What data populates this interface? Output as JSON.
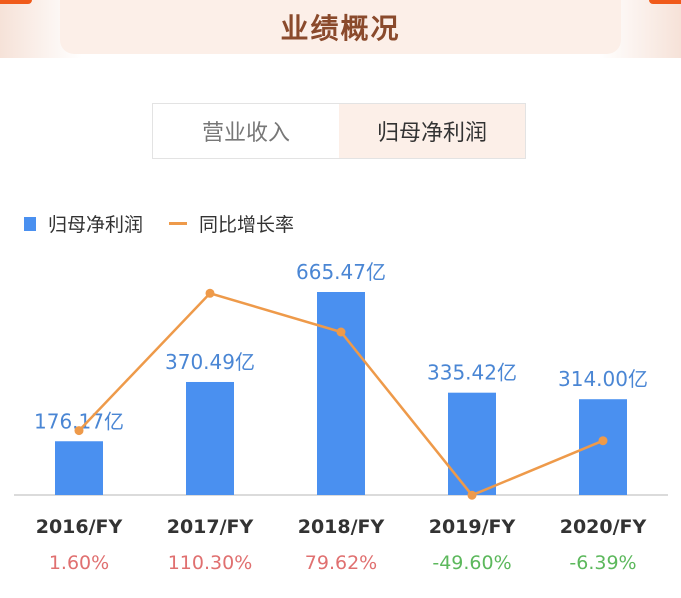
{
  "header": {
    "title": "业绩概况"
  },
  "tabs": [
    {
      "label": "营业收入",
      "active": false
    },
    {
      "label": "归母净利润",
      "active": true
    }
  ],
  "colors": {
    "bar": "#4a90f0",
    "line": "#ee9a4a",
    "positive": "#e07070",
    "negative": "#5cb85c",
    "value_label": "#4a86d4"
  },
  "chart_data": {
    "type": "bar",
    "categories": [
      "2016/FY",
      "2017/FY",
      "2018/FY",
      "2019/FY",
      "2020/FY"
    ],
    "series": [
      {
        "name": "归母净利润",
        "type": "bar",
        "values": [
          176.17,
          370.49,
          665.47,
          335.42,
          314.0
        ],
        "labels": [
          "176.17亿",
          "370.49亿",
          "665.47亿",
          "335.42亿",
          "314.00亿"
        ]
      },
      {
        "name": "同比增长率",
        "type": "line",
        "values": [
          1.6,
          110.3,
          79.62,
          -49.6,
          -6.39
        ],
        "labels": [
          "1.60%",
          "110.30%",
          "79.62%",
          "-49.60%",
          "-6.39%"
        ]
      }
    ],
    "legend": "top-left"
  }
}
